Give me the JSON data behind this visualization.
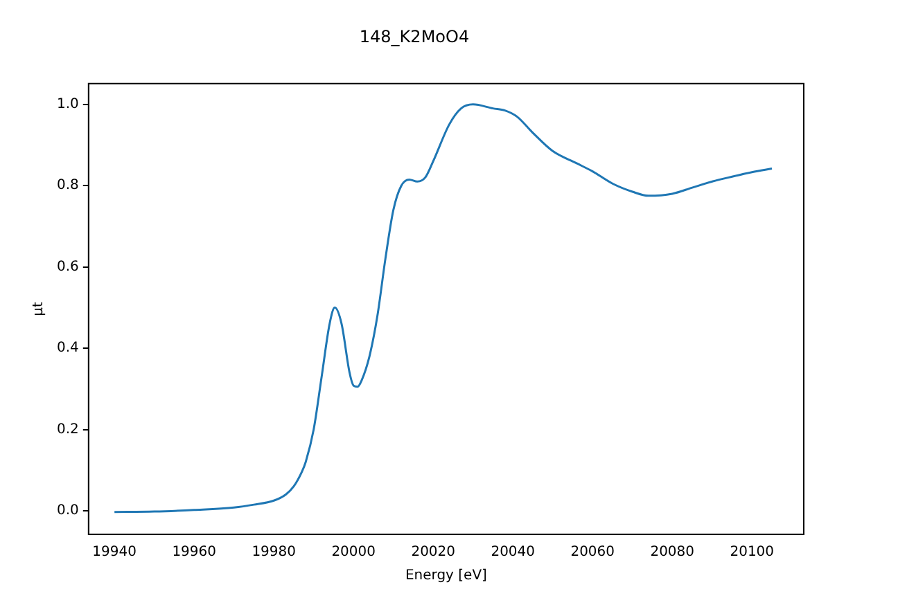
{
  "chart_data": {
    "type": "line",
    "title": "148_K2MoO4",
    "xlabel": "Energy [eV]",
    "ylabel": "μt",
    "x": [
      19940,
      19950,
      19960,
      19970,
      19975,
      19980,
      19983,
      19985,
      19987,
      19988,
      19990,
      19992,
      19994,
      19995.3,
      19997,
      19999,
      20000,
      20001,
      20002,
      20004,
      20006,
      20008,
      20010,
      20012,
      20014,
      20016,
      20018,
      20020,
      20024,
      20027,
      20030,
      20035,
      20038,
      20041,
      20045,
      20050,
      20056,
      20060,
      20065,
      20070,
      20074,
      20080,
      20085,
      20090,
      20095,
      20100,
      20105
    ],
    "series": [
      {
        "color": "#1f77b4",
        "values": [
          -0.003,
          -0.002,
          0.002,
          0.008,
          0.015,
          0.025,
          0.04,
          0.06,
          0.095,
          0.12,
          0.2,
          0.33,
          0.46,
          0.5,
          0.46,
          0.34,
          0.308,
          0.305,
          0.32,
          0.38,
          0.48,
          0.62,
          0.74,
          0.8,
          0.815,
          0.81,
          0.82,
          0.86,
          0.95,
          0.99,
          1.0,
          0.99,
          0.985,
          0.97,
          0.93,
          0.885,
          0.855,
          0.835,
          0.805,
          0.785,
          0.775,
          0.78,
          0.795,
          0.81,
          0.822,
          0.833,
          0.842
        ]
      }
    ],
    "xlim": [
      19933.5,
      20113
    ],
    "xticks": [
      19940,
      19960,
      19980,
      20000,
      20020,
      20040,
      20060,
      20080,
      20100
    ],
    "ylim": [
      -0.058,
      1.051
    ],
    "yticks": [
      {
        "value": 0,
        "label": "0.0"
      },
      0.2,
      0.4,
      0.6,
      0.8,
      {
        "value": 1,
        "label": "1.0"
      }
    ],
    "grid": false,
    "legend": false,
    "marker": "none",
    "line_style": "solid"
  }
}
